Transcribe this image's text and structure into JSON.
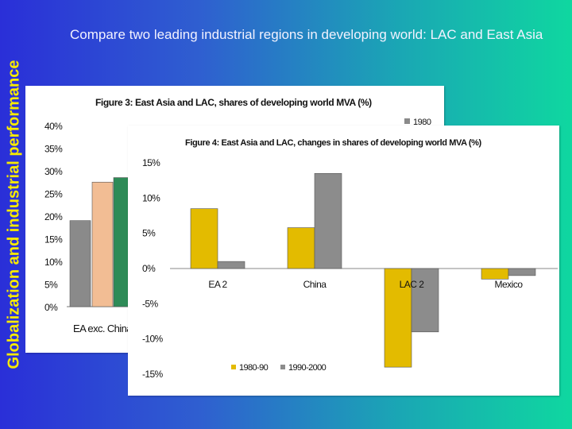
{
  "slide": {
    "side_title": "Globalization and industrial performance",
    "heading": "Compare two leading industrial regions in  developing world: LAC and East Asia"
  },
  "chart_data": [
    {
      "type": "bar",
      "title": "Figure 3: East Asia and LAC, shares of developing world MVA (%)",
      "categories": [
        "EA exc. China"
      ],
      "series": [
        {
          "name": "1980",
          "values": [
            19
          ]
        },
        {
          "name": "",
          "values": [
            27.5
          ]
        },
        {
          "name": "",
          "values": [
            28.5
          ]
        }
      ],
      "yticks": [
        "0%",
        "5%",
        "10%",
        "15%",
        "20%",
        "25%",
        "30%",
        "35%",
        "40%"
      ],
      "ylim": [
        0,
        40
      ],
      "legend_position": "top-right",
      "colors": [
        "#8a8a8a",
        "#f2bd94",
        "#2e8b57"
      ]
    },
    {
      "type": "bar",
      "title": "Figure 4: East Asia and LAC, changes in shares of developing world MVA (%)",
      "categories": [
        "EA 2",
        "China",
        "LAC 2",
        "Mexico"
      ],
      "series": [
        {
          "name": "1980-90",
          "values": [
            8.5,
            5.8,
            -14,
            -1.5
          ]
        },
        {
          "name": "1990-2000",
          "values": [
            1.0,
            13.5,
            -9.0,
            -1.0
          ]
        }
      ],
      "yticks": [
        "-15%",
        "-10%",
        "-5%",
        "0%",
        "5%",
        "10%",
        "15%"
      ],
      "ylim": [
        -15,
        15
      ],
      "legend_position": "bottom",
      "colors": [
        "#e3bb00",
        "#8c8c8c"
      ]
    }
  ]
}
